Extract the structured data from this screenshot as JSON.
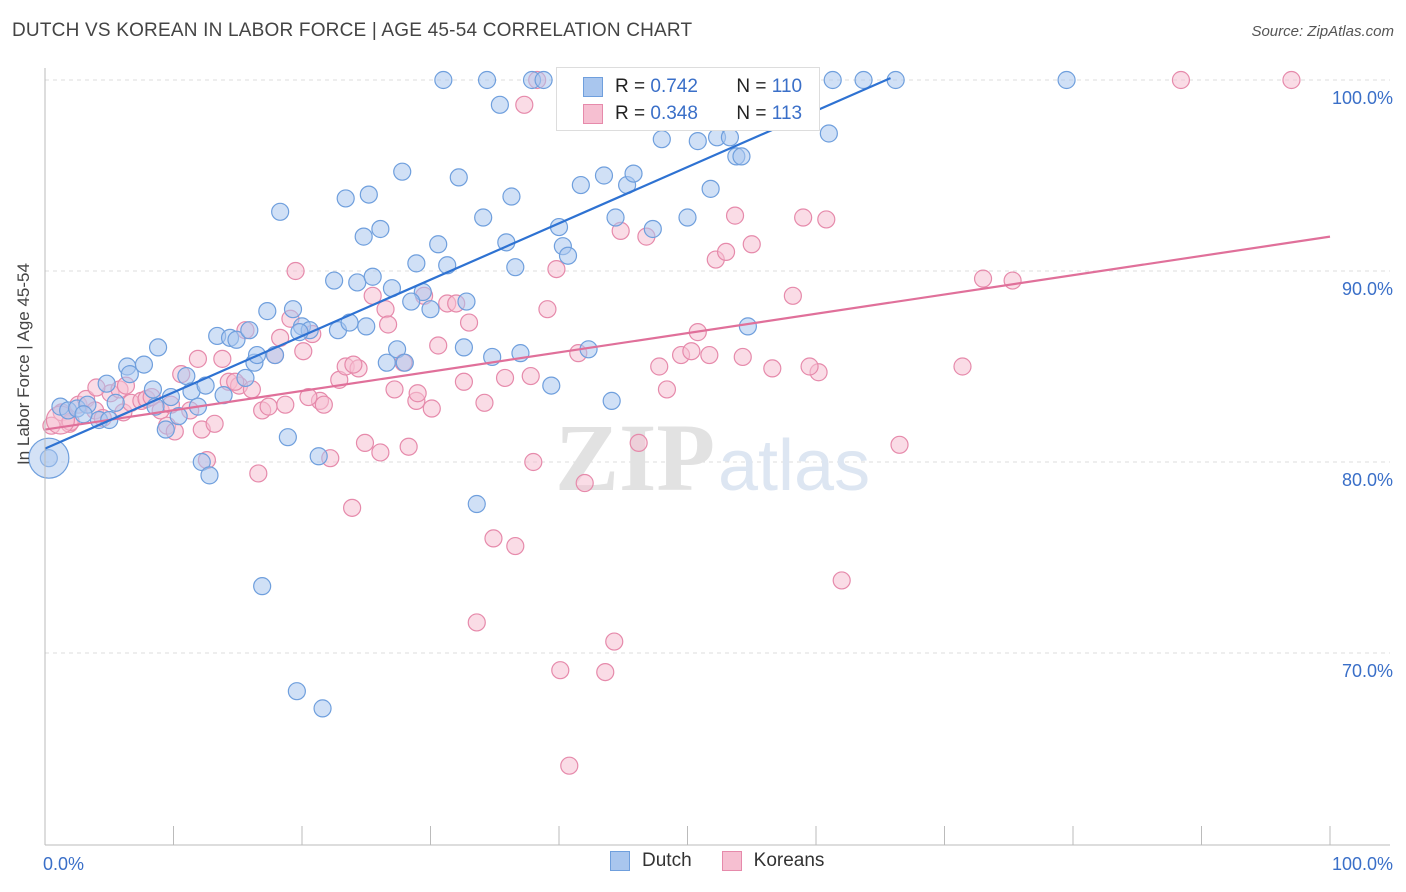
{
  "header": {
    "title": "DUTCH VS KOREAN IN LABOR FORCE | AGE 45-54 CORRELATION CHART",
    "source": "Source: ZipAtlas.com"
  },
  "watermark": "ZIPatlas",
  "legend": {
    "rows": [
      {
        "r_label": "R =",
        "r_value": "0.742",
        "n_label": "N =",
        "n_value": "110"
      },
      {
        "r_label": "R =",
        "r_value": "0.348",
        "n_label": "N =",
        "n_value": "113"
      }
    ]
  },
  "bottom_legend": {
    "dutch": "Dutch",
    "koreans": "Koreans"
  },
  "colors": {
    "dutch_fill": "#a9c6ee",
    "dutch_stroke": "#6f9fdd",
    "dutch_line": "#2e72d2",
    "korean_fill": "#f6bfd1",
    "korean_stroke": "#e68aab",
    "korean_line": "#e0709a",
    "axis_text": "#3a6fc8",
    "grid": "#dddddd"
  },
  "chart_data": {
    "type": "scatter",
    "title": "DUTCH VS KOREAN IN LABOR FORCE | AGE 45-54 CORRELATION CHART",
    "xlabel": "",
    "ylabel": "In Labor Force | Age 45-54",
    "x_ticks": [
      "0.0%",
      "100.0%"
    ],
    "y_ticks": [
      "70.0%",
      "80.0%",
      "90.0%",
      "100.0%"
    ],
    "xlim": [
      0,
      100
    ],
    "ylim": [
      59,
      101
    ],
    "series": [
      {
        "name": "Dutch",
        "r": 0.742,
        "n": 110,
        "trend": {
          "x0": 0,
          "y0": 80.7,
          "x1": 65.8,
          "y1": 100.1
        },
        "points": [
          [
            0.3,
            80.2
          ],
          [
            1.2,
            82.9
          ],
          [
            1.8,
            82.7
          ],
          [
            2.5,
            82.8
          ],
          [
            3.3,
            83.0
          ],
          [
            4.2,
            82.2
          ],
          [
            4.8,
            84.1
          ],
          [
            5.0,
            82.2
          ],
          [
            6.4,
            85.0
          ],
          [
            6.6,
            84.6
          ],
          [
            7.7,
            85.1
          ],
          [
            8.4,
            83.8
          ],
          [
            8.6,
            82.9
          ],
          [
            8.8,
            86.0
          ],
          [
            9.4,
            81.7
          ],
          [
            9.8,
            83.4
          ],
          [
            10.4,
            82.4
          ],
          [
            11.0,
            84.5
          ],
          [
            11.4,
            83.7
          ],
          [
            11.9,
            82.9
          ],
          [
            12.2,
            80.0
          ],
          [
            12.8,
            79.3
          ],
          [
            13.4,
            86.6
          ],
          [
            13.9,
            83.5
          ],
          [
            14.4,
            86.5
          ],
          [
            14.9,
            86.4
          ],
          [
            15.6,
            84.4
          ],
          [
            15.9,
            86.9
          ],
          [
            16.3,
            85.2
          ],
          [
            16.9,
            73.5
          ],
          [
            17.3,
            87.9
          ],
          [
            17.9,
            85.6
          ],
          [
            18.3,
            93.1
          ],
          [
            18.9,
            81.3
          ],
          [
            19.3,
            88.0
          ],
          [
            19.6,
            68.0
          ],
          [
            20.0,
            87.1
          ],
          [
            20.6,
            86.9
          ],
          [
            21.3,
            80.3
          ],
          [
            21.6,
            67.1
          ],
          [
            22.5,
            89.5
          ],
          [
            22.8,
            86.9
          ],
          [
            23.4,
            93.8
          ],
          [
            23.7,
            87.3
          ],
          [
            24.3,
            89.4
          ],
          [
            24.8,
            91.8
          ],
          [
            25.2,
            94.0
          ],
          [
            25.5,
            89.7
          ],
          [
            26.1,
            92.2
          ],
          [
            26.6,
            85.2
          ],
          [
            27.0,
            89.1
          ],
          [
            27.4,
            85.9
          ],
          [
            27.8,
            95.2
          ],
          [
            28.0,
            85.2
          ],
          [
            28.9,
            90.4
          ],
          [
            29.4,
            88.9
          ],
          [
            30.0,
            88.0
          ],
          [
            30.6,
            91.4
          ],
          [
            31.0,
            100.0
          ],
          [
            31.3,
            90.3
          ],
          [
            32.2,
            94.9
          ],
          [
            32.6,
            86.0
          ],
          [
            32.8,
            88.4
          ],
          [
            33.6,
            77.8
          ],
          [
            34.1,
            92.8
          ],
          [
            34.4,
            100.0
          ],
          [
            34.8,
            85.5
          ],
          [
            35.4,
            98.7
          ],
          [
            35.9,
            91.5
          ],
          [
            36.3,
            93.9
          ],
          [
            36.6,
            90.2
          ],
          [
            37.9,
            100.0
          ],
          [
            38.8,
            100.0
          ],
          [
            39.4,
            84.0
          ],
          [
            40.0,
            92.3
          ],
          [
            40.3,
            91.3
          ],
          [
            40.7,
            90.8
          ],
          [
            41.7,
            94.5
          ],
          [
            42.3,
            85.9
          ],
          [
            43.0,
            100.0
          ],
          [
            43.5,
            95.0
          ],
          [
            44.1,
            83.2
          ],
          [
            44.4,
            92.8
          ],
          [
            45.3,
            94.5
          ],
          [
            45.8,
            95.1
          ],
          [
            47.3,
            92.2
          ],
          [
            48.0,
            96.9
          ],
          [
            49.5,
            100.0
          ],
          [
            50.0,
            92.8
          ],
          [
            50.8,
            96.8
          ],
          [
            51.8,
            94.3
          ],
          [
            52.3,
            97.0
          ],
          [
            53.3,
            97.0
          ],
          [
            53.8,
            96.0
          ],
          [
            54.2,
            96.0
          ],
          [
            54.7,
            87.1
          ],
          [
            56.3,
            100.0
          ],
          [
            58.3,
            100.0
          ],
          [
            61.0,
            97.2
          ],
          [
            61.3,
            100.0
          ],
          [
            63.7,
            100.0
          ],
          [
            66.2,
            100.0
          ],
          [
            79.5,
            100.0
          ],
          [
            3.0,
            82.5
          ],
          [
            5.5,
            83.1
          ],
          [
            19.8,
            86.8
          ],
          [
            16.5,
            85.6
          ],
          [
            25.0,
            87.1
          ],
          [
            28.5,
            88.4
          ],
          [
            37.0,
            85.7
          ],
          [
            12.5,
            84.0
          ]
        ]
      },
      {
        "name": "Koreans",
        "r": 0.348,
        "n": 113,
        "trend": {
          "x0": 0,
          "y0": 81.7,
          "x1": 100,
          "y1": 91.8
        },
        "points": [
          [
            0.5,
            81.9
          ],
          [
            1.3,
            82.6
          ],
          [
            1.9,
            82.0
          ],
          [
            2.6,
            83.0
          ],
          [
            3.2,
            83.3
          ],
          [
            3.9,
            82.7
          ],
          [
            4.5,
            82.3
          ],
          [
            5.1,
            83.6
          ],
          [
            5.8,
            83.8
          ],
          [
            6.1,
            82.6
          ],
          [
            6.7,
            83.1
          ],
          [
            7.5,
            83.2
          ],
          [
            7.9,
            83.3
          ],
          [
            8.3,
            83.4
          ],
          [
            9.0,
            82.7
          ],
          [
            9.5,
            81.9
          ],
          [
            10.1,
            81.6
          ],
          [
            10.6,
            84.6
          ],
          [
            11.3,
            82.7
          ],
          [
            11.9,
            85.4
          ],
          [
            12.2,
            81.7
          ],
          [
            12.6,
            80.1
          ],
          [
            13.2,
            82.0
          ],
          [
            13.8,
            85.4
          ],
          [
            14.3,
            84.2
          ],
          [
            15.1,
            84.0
          ],
          [
            15.6,
            86.9
          ],
          [
            16.1,
            83.8
          ],
          [
            16.6,
            79.4
          ],
          [
            16.9,
            82.7
          ],
          [
            17.4,
            82.9
          ],
          [
            17.9,
            85.6
          ],
          [
            18.3,
            86.5
          ],
          [
            18.7,
            83.0
          ],
          [
            19.1,
            87.5
          ],
          [
            19.5,
            90.0
          ],
          [
            20.1,
            85.8
          ],
          [
            20.8,
            86.7
          ],
          [
            21.4,
            83.2
          ],
          [
            21.7,
            83.0
          ],
          [
            22.2,
            80.2
          ],
          [
            22.9,
            84.3
          ],
          [
            23.4,
            85.0
          ],
          [
            23.9,
            77.6
          ],
          [
            24.4,
            84.9
          ],
          [
            24.9,
            81.0
          ],
          [
            25.5,
            88.7
          ],
          [
            26.1,
            80.5
          ],
          [
            26.5,
            88.0
          ],
          [
            26.7,
            87.2
          ],
          [
            27.2,
            83.8
          ],
          [
            27.9,
            85.2
          ],
          [
            28.3,
            80.8
          ],
          [
            28.9,
            83.2
          ],
          [
            29.5,
            88.7
          ],
          [
            30.1,
            82.8
          ],
          [
            30.6,
            86.1
          ],
          [
            31.3,
            88.3
          ],
          [
            32.0,
            88.3
          ],
          [
            32.6,
            84.2
          ],
          [
            33.0,
            87.3
          ],
          [
            33.6,
            71.6
          ],
          [
            34.2,
            83.1
          ],
          [
            34.9,
            76.0
          ],
          [
            35.8,
            84.4
          ],
          [
            36.6,
            75.6
          ],
          [
            37.3,
            98.7
          ],
          [
            37.8,
            84.5
          ],
          [
            38.3,
            100.0
          ],
          [
            39.1,
            88.0
          ],
          [
            39.8,
            90.1
          ],
          [
            40.1,
            69.1
          ],
          [
            40.8,
            64.1
          ],
          [
            41.5,
            85.7
          ],
          [
            42.0,
            78.9
          ],
          [
            42.4,
            100.0
          ],
          [
            43.6,
            69.0
          ],
          [
            44.3,
            70.6
          ],
          [
            44.8,
            92.1
          ],
          [
            46.2,
            81.0
          ],
          [
            46.8,
            91.8
          ],
          [
            47.8,
            85.0
          ],
          [
            48.4,
            83.8
          ],
          [
            49.5,
            85.6
          ],
          [
            50.3,
            85.8
          ],
          [
            50.8,
            86.8
          ],
          [
            51.7,
            85.6
          ],
          [
            52.2,
            90.6
          ],
          [
            53.0,
            91.0
          ],
          [
            53.7,
            92.9
          ],
          [
            54.3,
            85.5
          ],
          [
            55.0,
            91.4
          ],
          [
            56.6,
            84.9
          ],
          [
            58.2,
            88.7
          ],
          [
            59.0,
            92.8
          ],
          [
            60.2,
            84.7
          ],
          [
            60.8,
            92.7
          ],
          [
            62.0,
            73.8
          ],
          [
            66.5,
            80.9
          ],
          [
            71.4,
            85.0
          ],
          [
            73.0,
            89.6
          ],
          [
            75.3,
            89.5
          ],
          [
            88.4,
            100.0
          ],
          [
            97.0,
            100.0
          ],
          [
            2.0,
            82.1
          ],
          [
            4.0,
            83.9
          ],
          [
            6.3,
            84.0
          ],
          [
            9.8,
            83.0
          ],
          [
            14.8,
            84.2
          ],
          [
            20.5,
            83.4
          ],
          [
            24.0,
            85.1
          ],
          [
            29.0,
            83.6
          ],
          [
            38.0,
            80.0
          ],
          [
            59.5,
            85.0
          ]
        ]
      }
    ]
  }
}
